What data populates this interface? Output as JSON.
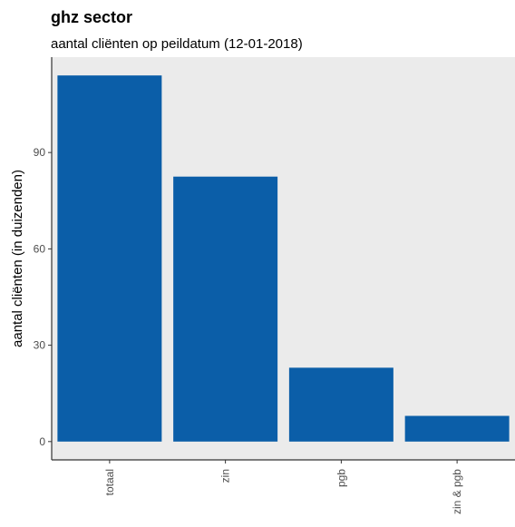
{
  "chart_data": {
    "type": "bar",
    "title": "ghz sector",
    "subtitle": "aantal cliënten op peildatum (12-01-2018)",
    "xlabel": "",
    "ylabel": "aantal cliënten (in duizenden)",
    "categories": [
      "totaal",
      "zin",
      "pgb",
      "zin & pgb"
    ],
    "values": [
      114,
      82.5,
      23,
      8
    ],
    "yticks": [
      0,
      30,
      60,
      90
    ],
    "ylim": [
      -5.7,
      119.7
    ],
    "grid": false,
    "legend": "none",
    "colors": {
      "bar": "#0b5ea8",
      "panel": "#ebebeb",
      "axis": "#333333"
    }
  }
}
